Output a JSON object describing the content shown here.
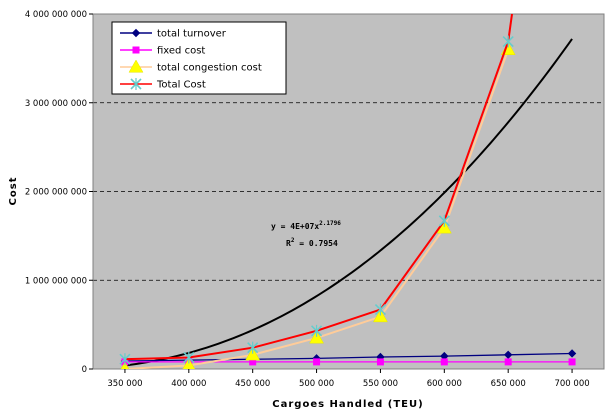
{
  "chart_data": {
    "type": "line",
    "xlabel": "Cargoes Handled (TEU)",
    "ylabel": "Cost",
    "xlim": [
      325000,
      725000
    ],
    "ylim": [
      0,
      4000000000
    ],
    "x_ticks": [
      350000,
      400000,
      450000,
      500000,
      550000,
      600000,
      650000,
      700000
    ],
    "x_tick_labels": [
      "350 000",
      "400 000",
      "450 000",
      "500 000",
      "550 000",
      "600 000",
      "650 000",
      "700 000"
    ],
    "y_ticks": [
      0,
      1000000000,
      2000000000,
      3000000000,
      4000000000
    ],
    "y_tick_labels": [
      "0",
      "1 000 000 000",
      "2 000 000 000",
      "3 000 000 000",
      "4 000 000 000"
    ],
    "grid": "horizontal dashed",
    "plot_background": "#c0c0c0",
    "legend_position": "top-left",
    "series": [
      {
        "name": "total turnover",
        "color": "#000080",
        "marker": "diamond",
        "x": [
          350000,
          400000,
          450000,
          500000,
          550000,
          600000,
          650000,
          700000
        ],
        "y": [
          90000000,
          100000000,
          110000000,
          120000000,
          135000000,
          145000000,
          160000000,
          175000000
        ]
      },
      {
        "name": "fixed cost",
        "color": "#ff00ff",
        "marker": "square",
        "x": [
          350000,
          400000,
          450000,
          500000,
          550000,
          600000,
          650000,
          700000
        ],
        "y": [
          80000000,
          80000000,
          80000000,
          80000000,
          80000000,
          80000000,
          80000000,
          80000000
        ]
      },
      {
        "name": "total congestion cost",
        "color": "#ffcc99",
        "marker": "triangle",
        "marker_color": "#ffff00",
        "x": [
          350000,
          400000,
          450000,
          500000,
          550000,
          600000,
          650000
        ],
        "y": [
          0,
          40000000,
          160000000,
          350000000,
          590000000,
          1590000000,
          3600000000
        ]
      },
      {
        "name": "Total Cost",
        "color": "#ff0000",
        "marker": "x",
        "marker_color": "#66cccc",
        "x": [
          350000,
          400000,
          450000,
          500000,
          550000,
          600000,
          650000,
          653000
        ],
        "y": [
          110000000,
          130000000,
          240000000,
          430000000,
          670000000,
          1670000000,
          3690000000,
          4000000000
        ]
      }
    ],
    "trendline": {
      "color": "#000000",
      "equation": "y = 4E+07x",
      "exponent": "2.1796",
      "r2_prefix": "R",
      "r2_exp": "2",
      "r2_value": " = 0.7954",
      "coef": 40000000,
      "power": 2.1796,
      "x_unit": 50000,
      "x_start": 350000,
      "x_end": 700000
    }
  }
}
